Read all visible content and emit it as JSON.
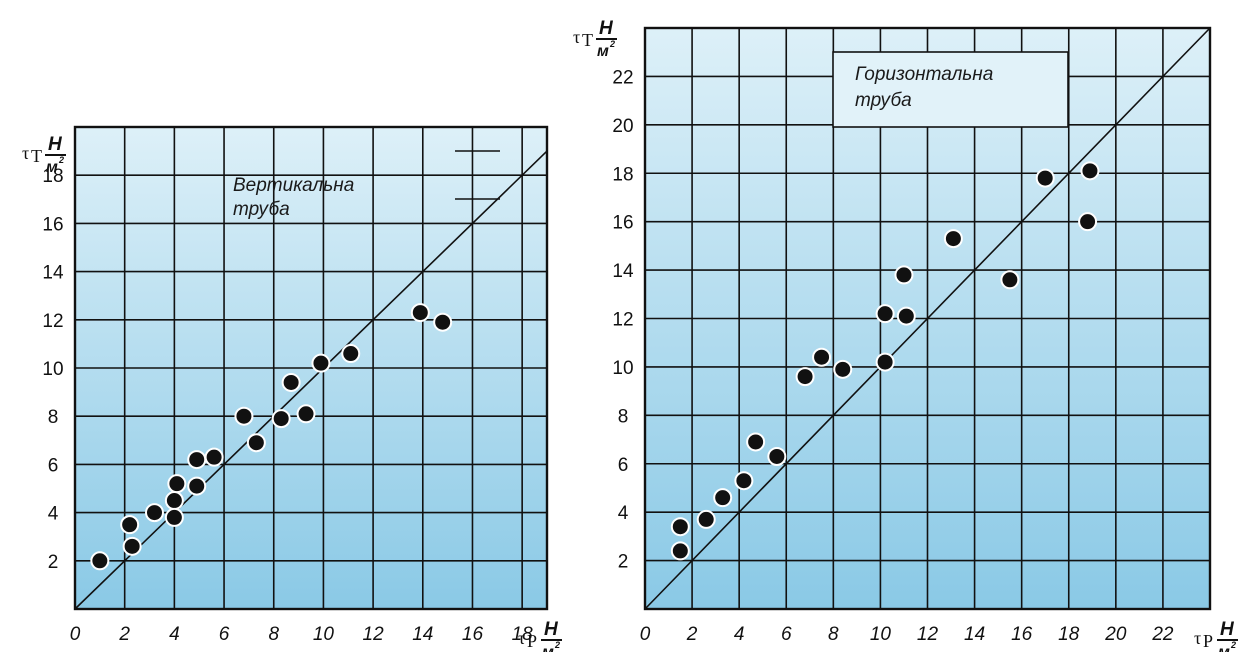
{
  "chart_data": [
    {
      "type": "scatter",
      "xlim": [
        0,
        19
      ],
      "ylim": [
        0,
        20
      ],
      "x_ticks": [
        "0",
        "2",
        "4",
        "6",
        "8",
        "10",
        "12",
        "14",
        "16",
        "18"
      ],
      "y_ticks": [
        "2",
        "4",
        "6",
        "8",
        "10",
        "12",
        "14",
        "16",
        "18"
      ],
      "xlabel": {
        "symbol": "τ",
        "sub": "P",
        "num": "Н",
        "den": "м",
        "sup": "2"
      },
      "ylabel": {
        "symbol": "τ",
        "sub": "T",
        "num": "Н",
        "den": "м",
        "sup": "2"
      },
      "annotation": [
        "Вертикальна",
        "труба"
      ],
      "reference_line": "y = x",
      "grid": true,
      "background": {
        "top": "#ddf0f8",
        "bottom": "#8ac9e6"
      },
      "marker_color": "#111111",
      "series": [
        {
          "points": [
            [
              1.0,
              2.0
            ],
            [
              2.2,
              3.5
            ],
            [
              2.3,
              2.6
            ],
            [
              3.2,
              4.0
            ],
            [
              4.0,
              4.5
            ],
            [
              4.0,
              3.8
            ],
            [
              4.1,
              5.2
            ],
            [
              4.9,
              6.2
            ],
            [
              4.9,
              5.1
            ],
            [
              5.6,
              6.3
            ],
            [
              6.8,
              8.0
            ],
            [
              7.3,
              6.9
            ],
            [
              8.3,
              7.9
            ],
            [
              8.7,
              9.4
            ],
            [
              9.3,
              8.1
            ],
            [
              9.9,
              10.2
            ],
            [
              11.1,
              10.6
            ],
            [
              13.9,
              12.3
            ],
            [
              14.8,
              11.9
            ]
          ]
        }
      ]
    },
    {
      "type": "scatter",
      "xlim": [
        0,
        24
      ],
      "ylim": [
        0,
        24
      ],
      "x_ticks": [
        "0",
        "2",
        "4",
        "6",
        "8",
        "10",
        "12",
        "14",
        "16",
        "18",
        "20",
        "22"
      ],
      "y_ticks": [
        "2",
        "4",
        "6",
        "8",
        "10",
        "12",
        "14",
        "16",
        "18",
        "20",
        "22"
      ],
      "xlabel": {
        "symbol": "τ",
        "sub": "P",
        "num": "Н",
        "den": "м",
        "sup": "2"
      },
      "ylabel": {
        "symbol": "τ",
        "sub": "T",
        "num": "Н",
        "den": "м",
        "sup": "2"
      },
      "annotation": [
        "Горизонтальна",
        "труба"
      ],
      "reference_line": "y = x",
      "grid": true,
      "background": {
        "top": "#ddf0f8",
        "bottom": "#8ac9e6"
      },
      "marker_color": "#111111",
      "series": [
        {
          "points": [
            [
              1.5,
              3.4
            ],
            [
              1.5,
              2.4
            ],
            [
              2.6,
              3.7
            ],
            [
              3.3,
              4.6
            ],
            [
              4.2,
              5.3
            ],
            [
              4.7,
              6.9
            ],
            [
              5.6,
              6.3
            ],
            [
              6.8,
              9.6
            ],
            [
              7.5,
              10.4
            ],
            [
              8.4,
              9.9
            ],
            [
              10.2,
              12.2
            ],
            [
              10.2,
              10.2
            ],
            [
              11.0,
              13.8
            ],
            [
              11.1,
              12.1
            ],
            [
              13.1,
              15.3
            ],
            [
              15.5,
              13.6
            ],
            [
              17.0,
              17.8
            ],
            [
              18.8,
              16.0
            ],
            [
              18.9,
              18.1
            ]
          ]
        }
      ]
    }
  ]
}
